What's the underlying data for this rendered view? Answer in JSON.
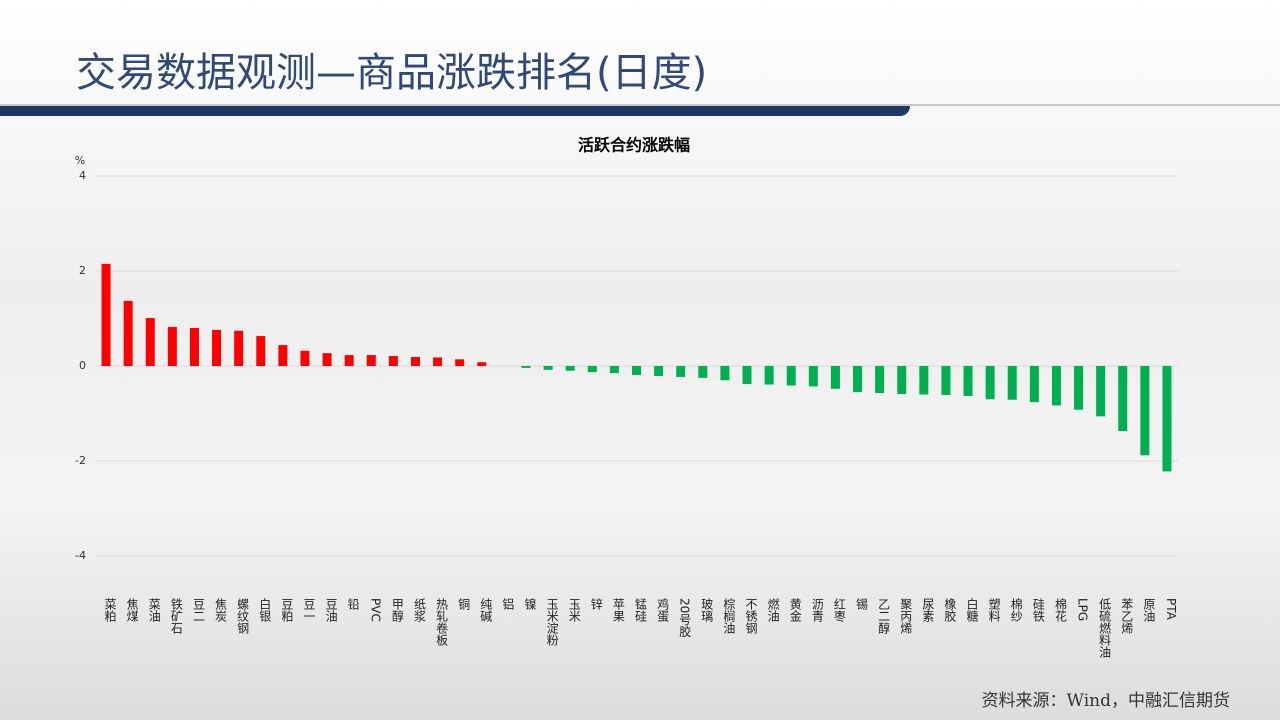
{
  "header": {
    "title": "交易数据观测—商品涨跌排名(日度)"
  },
  "chart_data": {
    "type": "bar",
    "title": "活跃合约涨跌幅",
    "y_label": "%",
    "categories": [
      "菜粕",
      "焦煤",
      "菜油",
      "铁矿石",
      "豆二",
      "焦炭",
      "螺纹钢",
      "白银",
      "豆粕",
      "豆一",
      "豆油",
      "铅",
      "PVC",
      "甲醇",
      "纸浆",
      "热轧卷板",
      "铜",
      "纯碱",
      "铝",
      "镍",
      "玉米淀粉",
      "玉米",
      "锌",
      "苹果",
      "锰硅",
      "鸡蛋",
      "20号胶",
      "玻璃",
      "棕榈油",
      "不锈钢",
      "燃油",
      "黄金",
      "沥青",
      "红枣",
      "锡",
      "乙二醇",
      "聚丙烯",
      "尿素",
      "橡胶",
      "白糖",
      "塑料",
      "棉纱",
      "硅铁",
      "棉花",
      "LPG",
      "低硫燃料油",
      "苯乙烯",
      "原油",
      "PTA"
    ],
    "values": [
      2.15,
      1.37,
      1.01,
      0.82,
      0.8,
      0.76,
      0.74,
      0.63,
      0.44,
      0.32,
      0.27,
      0.23,
      0.23,
      0.21,
      0.19,
      0.18,
      0.14,
      0.08,
      0,
      -0.04,
      -0.08,
      -0.1,
      -0.13,
      -0.15,
      -0.19,
      -0.21,
      -0.23,
      -0.25,
      -0.3,
      -0.38,
      -0.39,
      -0.41,
      -0.43,
      -0.48,
      -0.55,
      -0.57,
      -0.59,
      -0.6,
      -0.61,
      -0.63,
      -0.7,
      -0.71,
      -0.76,
      -0.83,
      -0.92,
      -1.06,
      -1.37,
      -1.88,
      -2.22
    ],
    "colors": {
      "positive": "#ff0000",
      "negative": "#00b050"
    },
    "ylim": [
      -4,
      4
    ],
    "yticks": [
      -4,
      -2,
      0,
      2,
      4
    ],
    "grid": true
  },
  "footer": {
    "source": "资料来源：Wind，中融汇信期货"
  }
}
